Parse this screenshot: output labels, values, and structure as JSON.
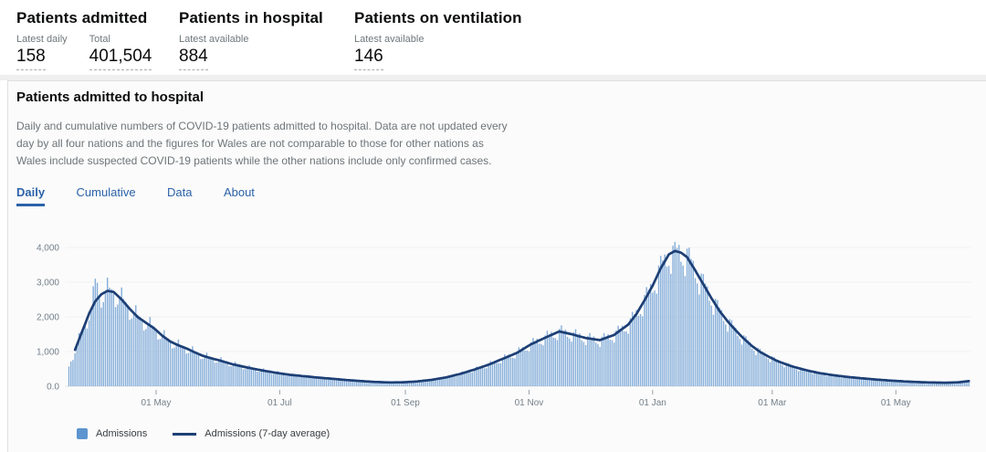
{
  "stats": {
    "groups": [
      {
        "title": "Patients admitted",
        "metrics": [
          {
            "label": "Latest daily",
            "value": "158"
          },
          {
            "label": "Total",
            "value": "401,504"
          }
        ]
      },
      {
        "title": "Patients in hospital",
        "metrics": [
          {
            "label": "Latest available",
            "value": "884"
          }
        ]
      },
      {
        "title": "Patients on ventilation",
        "metrics": [
          {
            "label": "Latest available",
            "value": "146"
          }
        ]
      }
    ]
  },
  "card": {
    "title": "Patients admitted to hospital",
    "description": "Daily and cumulative numbers of COVID-19 patients admitted to hospital. Data are not updated every day by all four nations and the figures for Wales are not comparable to those for other nations as Wales include suspected COVID-19 patients while the other nations include only confirmed cases.",
    "tabs": [
      {
        "label": "Daily",
        "active": true
      },
      {
        "label": "Cumulative",
        "active": false
      },
      {
        "label": "Data",
        "active": false
      },
      {
        "label": "About",
        "active": false
      }
    ]
  },
  "chart_data": {
    "type": "combo",
    "series": [
      {
        "name": "Admissions",
        "type": "bar",
        "color": "#5d94cf"
      },
      {
        "name": "Admissions (7-day average)",
        "type": "line",
        "color": "#1d3f75"
      }
    ],
    "title": "",
    "xlabel": "",
    "ylabel": "",
    "start_date": "2020-03-19",
    "end_date": "2021-06-06",
    "ylim": [
      0,
      4400
    ],
    "grid": true,
    "legend_position": "bottom-left",
    "y_ticks": [
      {
        "v": 0,
        "label": "0.0"
      },
      {
        "v": 1000,
        "label": "1,000"
      },
      {
        "v": 2000,
        "label": "2,000"
      },
      {
        "v": 3000,
        "label": "3,000"
      },
      {
        "v": 4000,
        "label": "4,000"
      }
    ],
    "x_ticks": [
      {
        "date": "2020-05-01",
        "label": "01 May"
      },
      {
        "date": "2020-07-01",
        "label": "01 Jul"
      },
      {
        "date": "2020-09-01",
        "label": "01 Sep"
      },
      {
        "date": "2020-11-01",
        "label": "01 Nov"
      },
      {
        "date": "2021-01-01",
        "label": "01 Jan"
      },
      {
        "date": "2021-03-01",
        "label": "01 Mar"
      },
      {
        "date": "2021-05-01",
        "label": "01 May"
      }
    ],
    "avg_keypoints": [
      [
        "2020-03-19",
        560
      ],
      [
        "2020-03-22",
        1050
      ],
      [
        "2020-03-26",
        1650
      ],
      [
        "2020-03-29",
        2100
      ],
      [
        "2020-04-01",
        2450
      ],
      [
        "2020-04-04",
        2650
      ],
      [
        "2020-04-07",
        2750
      ],
      [
        "2020-04-10",
        2720
      ],
      [
        "2020-04-14",
        2500
      ],
      [
        "2020-04-18",
        2230
      ],
      [
        "2020-04-22",
        1990
      ],
      [
        "2020-04-26",
        1830
      ],
      [
        "2020-04-30",
        1670
      ],
      [
        "2020-05-04",
        1460
      ],
      [
        "2020-05-08",
        1290
      ],
      [
        "2020-05-12",
        1180
      ],
      [
        "2020-05-16",
        1090
      ],
      [
        "2020-05-20",
        980
      ],
      [
        "2020-05-24",
        880
      ],
      [
        "2020-05-28",
        810
      ],
      [
        "2020-06-01",
        750
      ],
      [
        "2020-06-08",
        630
      ],
      [
        "2020-06-15",
        540
      ],
      [
        "2020-06-22",
        460
      ],
      [
        "2020-06-29",
        390
      ],
      [
        "2020-07-06",
        330
      ],
      [
        "2020-07-13",
        290
      ],
      [
        "2020-07-20",
        250
      ],
      [
        "2020-07-27",
        215
      ],
      [
        "2020-08-03",
        180
      ],
      [
        "2020-08-10",
        150
      ],
      [
        "2020-08-17",
        125
      ],
      [
        "2020-08-24",
        110
      ],
      [
        "2020-08-31",
        115
      ],
      [
        "2020-09-07",
        140
      ],
      [
        "2020-09-14",
        185
      ],
      [
        "2020-09-21",
        255
      ],
      [
        "2020-09-28",
        355
      ],
      [
        "2020-10-05",
        480
      ],
      [
        "2020-10-12",
        620
      ],
      [
        "2020-10-19",
        790
      ],
      [
        "2020-10-26",
        960
      ],
      [
        "2020-11-02",
        1210
      ],
      [
        "2020-11-09",
        1400
      ],
      [
        "2020-11-16",
        1580
      ],
      [
        "2020-11-22",
        1500
      ],
      [
        "2020-11-29",
        1390
      ],
      [
        "2020-12-06",
        1330
      ],
      [
        "2020-12-13",
        1480
      ],
      [
        "2020-12-20",
        1780
      ],
      [
        "2020-12-24",
        2080
      ],
      [
        "2020-12-29",
        2580
      ],
      [
        "2021-01-01",
        2900
      ],
      [
        "2021-01-05",
        3400
      ],
      [
        "2021-01-09",
        3800
      ],
      [
        "2021-01-12",
        3900
      ],
      [
        "2021-01-15",
        3850
      ],
      [
        "2021-01-18",
        3720
      ],
      [
        "2021-01-22",
        3340
      ],
      [
        "2021-01-26",
        2940
      ],
      [
        "2021-01-30",
        2540
      ],
      [
        "2021-02-03",
        2170
      ],
      [
        "2021-02-07",
        1870
      ],
      [
        "2021-02-11",
        1610
      ],
      [
        "2021-02-15",
        1370
      ],
      [
        "2021-02-19",
        1160
      ],
      [
        "2021-02-23",
        990
      ],
      [
        "2021-02-27",
        860
      ],
      [
        "2021-03-03",
        740
      ],
      [
        "2021-03-07",
        650
      ],
      [
        "2021-03-11",
        570
      ],
      [
        "2021-03-15",
        505
      ],
      [
        "2021-03-19",
        445
      ],
      [
        "2021-03-23",
        395
      ],
      [
        "2021-03-27",
        355
      ],
      [
        "2021-03-31",
        320
      ],
      [
        "2021-04-07",
        270
      ],
      [
        "2021-04-14",
        230
      ],
      [
        "2021-04-21",
        195
      ],
      [
        "2021-04-28",
        165
      ],
      [
        "2021-05-05",
        140
      ],
      [
        "2021-05-12",
        120
      ],
      [
        "2021-05-19",
        108
      ],
      [
        "2021-05-26",
        102
      ],
      [
        "2021-06-01",
        115
      ],
      [
        "2021-06-06",
        150
      ]
    ],
    "bar_spikes": {
      "2020-03-31": 2880,
      "2020-04-01": 3100,
      "2020-04-02": 2980,
      "2021-01-11": 4050,
      "2021-01-12": 4160,
      "2021-01-13": 3990,
      "2021-06-05": 175,
      "2021-06-06": 185
    },
    "weekday_pattern": [
      0.87,
      1.05,
      1.1,
      1.06,
      1.02,
      0.97,
      0.88
    ]
  },
  "theme": {
    "accent_blue": "#2b62a8",
    "bar_color": "#5d94cf",
    "line_color": "#1d3f75",
    "grid_color": "#f2f2f2",
    "axis_label_color": "#74808a"
  }
}
